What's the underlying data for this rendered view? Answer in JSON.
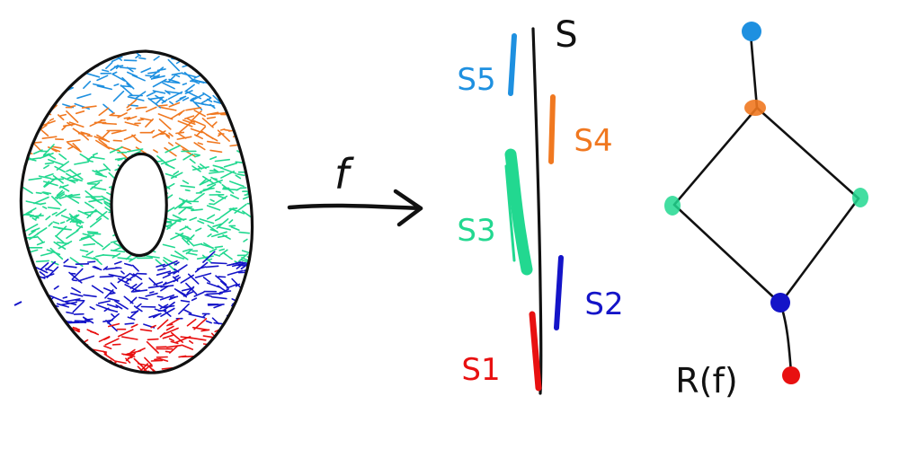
{
  "torus": {
    "bands": [
      {
        "id": "s5",
        "color": "#1E90E0"
      },
      {
        "id": "s4",
        "color": "#F07820"
      },
      {
        "id": "s3",
        "color": "#22D890"
      },
      {
        "id": "s2",
        "color": "#1414C8"
      },
      {
        "id": "s1",
        "color": "#E81010"
      }
    ]
  },
  "map": {
    "label": "f"
  },
  "axis": {
    "label": "S",
    "segments": [
      {
        "label": "S5",
        "color": "#1E90E0"
      },
      {
        "label": "S4",
        "color": "#F07820"
      },
      {
        "label": "S3",
        "color": "#22D890"
      },
      {
        "label": "S2",
        "color": "#1414C8"
      },
      {
        "label": "S1",
        "color": "#E81010"
      }
    ]
  },
  "reeb_graph": {
    "label": "R(f)",
    "nodes": [
      {
        "id": "top",
        "color": "#1E90E0"
      },
      {
        "id": "upper-junction",
        "color": "#F07820"
      },
      {
        "id": "left",
        "color": "#22D890"
      },
      {
        "id": "right",
        "color": "#22D890"
      },
      {
        "id": "lower-junction",
        "color": "#1414C8"
      },
      {
        "id": "bottom",
        "color": "#E81010"
      }
    ],
    "edges": [
      [
        "top",
        "upper-junction"
      ],
      [
        "upper-junction",
        "left"
      ],
      [
        "upper-junction",
        "right"
      ],
      [
        "left",
        "lower-junction"
      ],
      [
        "right",
        "lower-junction"
      ],
      [
        "lower-junction",
        "bottom"
      ]
    ]
  }
}
